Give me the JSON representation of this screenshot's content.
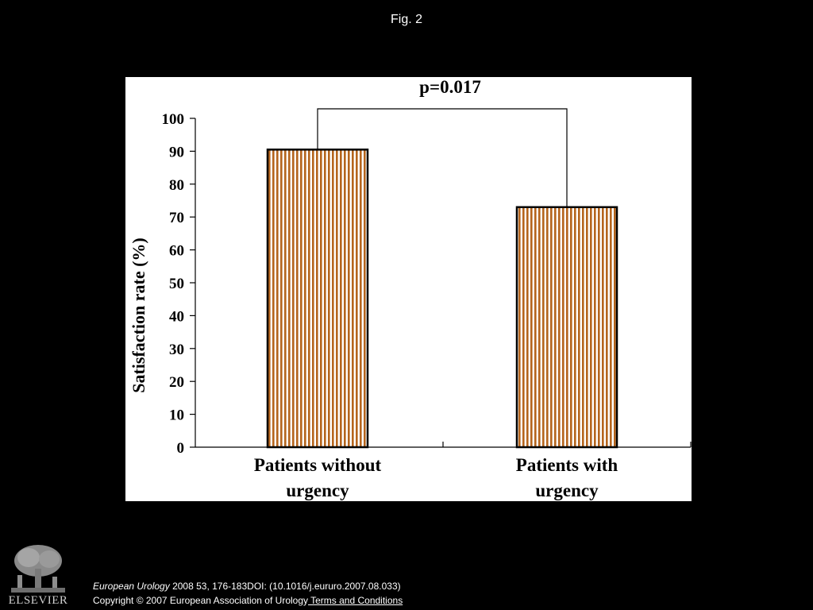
{
  "slide": {
    "title": "Fig. 2"
  },
  "chart_data": {
    "type": "bar",
    "categories": [
      [
        "Patients without",
        "urgency"
      ],
      [
        "Patients with",
        "urgency"
      ]
    ],
    "values": [
      90.5,
      73
    ],
    "ylabel": "Satisfaction rate (%)",
    "ylim": [
      0,
      100
    ],
    "yticks": [
      0,
      10,
      20,
      30,
      40,
      50,
      60,
      70,
      80,
      90,
      100
    ],
    "annotation": "p=0.017",
    "bar_fill": "#b5651d",
    "bar_stripe_bg": "#ffffff",
    "grid": false,
    "legend": "none"
  },
  "footer": {
    "journal": "European Urology",
    "citation": " 2008 53, 176-183DOI: (10.1016/j.eururo.2007.08.033)",
    "copyright": "Copyright © 2007 European Association of Urology",
    "link": " Terms and Conditions"
  },
  "logo": {
    "icon": "elsevier-tree-icon",
    "wordmark": "ELSEVIER"
  }
}
